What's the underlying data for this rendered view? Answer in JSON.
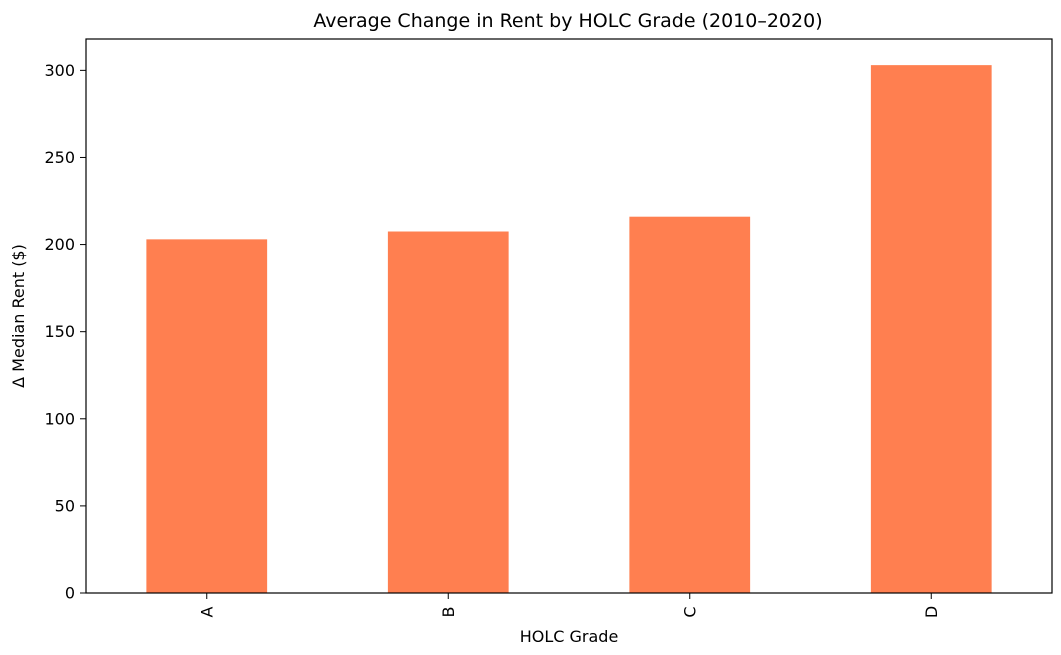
{
  "chart_data": {
    "type": "bar",
    "title": "Average Change in Rent by HOLC Grade (2010–2020)",
    "xlabel": "HOLC Grade",
    "ylabel": "Δ Median Rent ($)",
    "categories": [
      "A",
      "B",
      "C",
      "D"
    ],
    "values": [
      203,
      207.5,
      216,
      303
    ],
    "ylim": [
      0,
      318
    ],
    "yticks": [
      0,
      50,
      100,
      150,
      200,
      250,
      300
    ],
    "grid": false,
    "legend": "none",
    "bar_color": "#FF7F50"
  }
}
